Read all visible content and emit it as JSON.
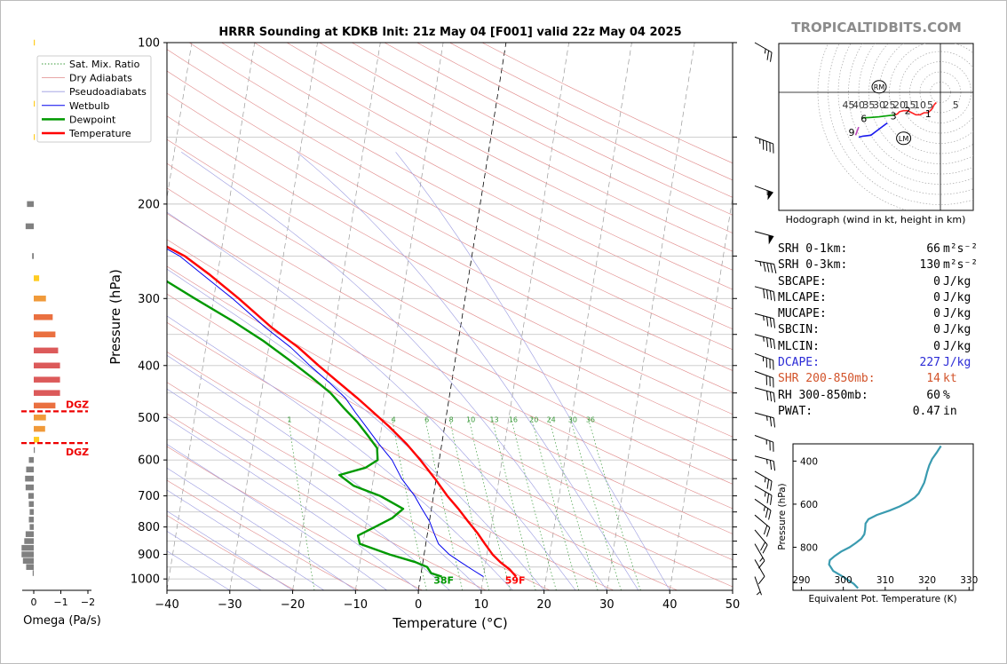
{
  "title": "HRRR Sounding at KDKB Init: 21z May 04 [F001] valid 22z May 04 2025",
  "watermark": "TROPICALTIDBITS.COM",
  "chart_data": [
    {
      "type": "line",
      "name": "skew-T",
      "xlabel": "Temperature (°C)",
      "ylabel": "Pressure (hPa)",
      "xlim": [
        -40,
        50
      ],
      "ylim": [
        1050,
        100
      ],
      "y_log": true,
      "x_ticks": [
        "−40",
        "−30",
        "−20",
        "−10",
        "0",
        "10",
        "20",
        "30",
        "40",
        "50"
      ],
      "y_ticks": [
        "100",
        "200",
        "300",
        "400",
        "500",
        "600",
        "700",
        "800",
        "900",
        "1000"
      ],
      "legend": [
        "Sat. Mix. Ratio",
        "Dry Adiabats",
        "Pseudoadiabats",
        "Wetbulb",
        "Dewpoint",
        "Temperature"
      ],
      "legend_position": "top-left",
      "mixing_ratio_labels": [
        "1",
        "4",
        "6",
        "8",
        "10",
        "13",
        "16",
        "20",
        "24",
        "30",
        "36"
      ],
      "surface_labels": {
        "dewpoint": "38F",
        "temperature": "59F"
      },
      "series": [
        {
          "name": "Temperature",
          "color": "#ff0000",
          "p": [
            990,
            960,
            930,
            900,
            860,
            820,
            780,
            740,
            700,
            650,
            600,
            560,
            520,
            490,
            460,
            430,
            400,
            370,
            340,
            300,
            270,
            250,
            230,
            220,
            210,
            200,
            180,
            165,
            150,
            130,
            115,
            100
          ],
          "t": [
            15.2,
            14.0,
            12.3,
            10.9,
            9.4,
            7.9,
            6.1,
            4.3,
            2.2,
            -0.2,
            -3.0,
            -5.6,
            -8.8,
            -11.6,
            -14.6,
            -18.0,
            -21.6,
            -25.3,
            -30.0,
            -36.0,
            -41.4,
            -45.7,
            -52.0,
            -54.5,
            -56.2,
            -57.1,
            -57.1,
            -56.5,
            -60.0,
            -65.0,
            -70.0,
            -76.0
          ]
        },
        {
          "name": "Wetbulb",
          "color": "#0000ee",
          "p": [
            990,
            960,
            930,
            900,
            860,
            820,
            780,
            740,
            700,
            650,
            600,
            560,
            520,
            490,
            460,
            430,
            400,
            370,
            340,
            300,
            270,
            250,
            230,
            220,
            210,
            200,
            180,
            165,
            150,
            130,
            115,
            100
          ],
          "t": [
            10.0,
            8.0,
            6.0,
            4.0,
            2.0,
            1.0,
            0.0,
            -1.5,
            -3.0,
            -5.5,
            -7.5,
            -10.0,
            -12.5,
            -14.5,
            -16.5,
            -19.5,
            -23.0,
            -26.5,
            -31.0,
            -37.0,
            -42.5,
            -46.5,
            -52.5,
            -55.0,
            -56.8,
            -57.6,
            -57.4,
            -56.8,
            -60.2,
            -65.2,
            -70.2,
            -76.2
          ]
        },
        {
          "name": "Dewpoint",
          "color": "#009900",
          "p": [
            990,
            975,
            950,
            930,
            900,
            860,
            830,
            800,
            770,
            740,
            700,
            670,
            640,
            620,
            600,
            570,
            540,
            510,
            480,
            450,
            420,
            390,
            360,
            330,
            300,
            270,
            250,
            230,
            200,
            180,
            160,
            150,
            130,
            115,
            100
          ],
          "t": [
            3.4,
            1.6,
            0.8,
            -1.2,
            -5.5,
            -10.5,
            -11.0,
            -8.5,
            -6.0,
            -4.5,
            -8.5,
            -13.0,
            -15.5,
            -11.5,
            -9.8,
            -10.2,
            -12.0,
            -14.0,
            -16.5,
            -19.0,
            -22.5,
            -26.5,
            -31.0,
            -36.5,
            -43.0,
            -50.0,
            -54.0,
            -57.5,
            -62.5,
            -67.0,
            -70.5,
            -71.5,
            -73.5,
            -74.5,
            -75.0
          ]
        }
      ]
    },
    {
      "type": "bar",
      "name": "omega",
      "xlabel": "Omega (Pa/s)",
      "x_ticks": [
        "0",
        "−1",
        "−2"
      ],
      "xlim": [
        0.3,
        -2.2
      ],
      "dgz_label": "DGZ",
      "dgz_levels_hpa": [
        487,
        558
      ],
      "p": [
        100,
        130,
        150,
        200,
        220,
        250,
        275,
        300,
        325,
        350,
        375,
        400,
        425,
        450,
        475,
        500,
        525,
        550,
        575,
        600,
        625,
        650,
        675,
        700,
        725,
        750,
        775,
        800,
        825,
        850,
        875,
        900,
        925,
        950,
        975
      ],
      "values": [
        -0.04,
        -0.03,
        -0.03,
        0.25,
        0.3,
        0.06,
        -0.2,
        -0.45,
        -0.7,
        -0.8,
        -0.9,
        -0.97,
        -0.97,
        -0.97,
        -0.8,
        -0.45,
        -0.42,
        -0.2,
        0.0,
        0.18,
        0.28,
        0.32,
        0.3,
        0.2,
        0.18,
        0.15,
        0.18,
        0.15,
        0.3,
        0.35,
        0.45,
        0.45,
        0.4,
        0.28,
        0.04
      ]
    },
    {
      "type": "line",
      "name": "equivalent potential temperature",
      "xlabel": "Equivalent Pot. Temperature (K)",
      "ylabel": "Pressure (hPa)",
      "xlim": [
        288,
        331
      ],
      "ylim": [
        1000,
        320
      ],
      "x_ticks": [
        "290",
        "300",
        "310",
        "320",
        "330"
      ],
      "y_ticks": [
        "400",
        "600",
        "800"
      ],
      "color": "#3a9bb0",
      "p": [
        990,
        970,
        940,
        910,
        880,
        860,
        840,
        820,
        800,
        780,
        760,
        740,
        720,
        690,
        670,
        650,
        630,
        610,
        590,
        570,
        550,
        520,
        500,
        480,
        450,
        420,
        390,
        360,
        330
      ],
      "theta_e": [
        303.5,
        302.5,
        300.2,
        297.6,
        296.6,
        296.8,
        298.0,
        299.5,
        301.5,
        303.0,
        304.3,
        305.0,
        305.2,
        305.3,
        306.0,
        308.0,
        311.0,
        313.5,
        315.5,
        317.0,
        318.0,
        318.8,
        319.3,
        319.6,
        320.0,
        320.5,
        321.2,
        322.3,
        323.3
      ]
    },
    {
      "type": "line",
      "name": "hodograph",
      "caption": "Hodograph (wind in kt, height in km)",
      "ring_labels": [
        "45",
        "40",
        "35",
        "30",
        "25",
        "20",
        "15",
        "10",
        "5",
        "5"
      ],
      "height_labels": [
        "1",
        "2",
        "3",
        "6",
        "9"
      ],
      "motion_labels": {
        "right_mover": "RM",
        "left_mover": "LM"
      },
      "segments": [
        {
          "color": "#ff2020",
          "u": [
            -2,
            -3,
            -4,
            -6,
            -8,
            -10,
            -12,
            -14,
            -16,
            -18
          ],
          "v": [
            -5,
            -6,
            -8,
            -10,
            -10,
            -11,
            -11,
            -10,
            -9,
            -9
          ]
        },
        {
          "color": "#ff2020",
          "u": [
            -18,
            -20,
            -21,
            -22
          ],
          "v": [
            -9,
            -9.5,
            -10.5,
            -11
          ]
        },
        {
          "color": "#00a000",
          "u": [
            -22,
            -26,
            -30,
            -34,
            -38
          ],
          "v": [
            -11,
            -11.5,
            -12,
            -12.3,
            -12.5
          ]
        },
        {
          "color": "#1a1aee",
          "u": [
            -26,
            -30,
            -34,
            -38,
            -40
          ],
          "v": [
            -15,
            -18,
            -21,
            -21.5,
            -22
          ]
        },
        {
          "color": "#bb44bb",
          "u": [
            -40,
            -41.5
          ],
          "v": [
            -17,
            -21
          ]
        }
      ],
      "rm": {
        "u": -30,
        "v": 2.7
      },
      "lm": {
        "u": -18,
        "v": -22.5
      }
    }
  ],
  "stats": [
    {
      "label": "SRH 0-1km:",
      "value": "66",
      "unit": "m²s⁻²",
      "style": ""
    },
    {
      "label": "SRH 0-3km:",
      "value": "130",
      "unit": "m²s⁻²",
      "style": ""
    },
    {
      "label": "SBCAPE:",
      "value": "0",
      "unit": "J/kg",
      "style": ""
    },
    {
      "label": "MLCAPE:",
      "value": "0",
      "unit": "J/kg",
      "style": ""
    },
    {
      "label": "MUCAPE:",
      "value": "0",
      "unit": "J/kg",
      "style": ""
    },
    {
      "label": "SBCIN:",
      "value": "0",
      "unit": "J/kg",
      "style": ""
    },
    {
      "label": "MLCIN:",
      "value": "0",
      "unit": "J/kg",
      "style": ""
    },
    {
      "label": "DCAPE:",
      "value": "227",
      "unit": "J/kg",
      "style": "blue"
    },
    {
      "label": "SHR 200-850mb:",
      "value": "14",
      "unit": "kt",
      "style": "orange"
    },
    {
      "label": "RH 300-850mb:",
      "value": "60",
      "unit": "%",
      "style": ""
    },
    {
      "label": "PWAT:",
      "value": "0.47",
      "unit": "in",
      "style": ""
    }
  ],
  "wind_barbs": [
    {
      "p": 100,
      "kt": 25,
      "dir": 300
    },
    {
      "p": 150,
      "kt": 45,
      "dir": 290
    },
    {
      "p": 185,
      "kt": 55,
      "dir": 290
    },
    {
      "p": 225,
      "kt": 50,
      "dir": 285
    },
    {
      "p": 255,
      "kt": 45,
      "dir": 280
    },
    {
      "p": 285,
      "kt": 40,
      "dir": 285
    },
    {
      "p": 320,
      "kt": 35,
      "dir": 285
    },
    {
      "p": 350,
      "kt": 35,
      "dir": 285
    },
    {
      "p": 380,
      "kt": 35,
      "dir": 290
    },
    {
      "p": 410,
      "kt": 30,
      "dir": 290
    },
    {
      "p": 440,
      "kt": 30,
      "dir": 285
    },
    {
      "p": 490,
      "kt": 25,
      "dir": 285
    },
    {
      "p": 540,
      "kt": 25,
      "dir": 290
    },
    {
      "p": 590,
      "kt": 25,
      "dir": 285
    },
    {
      "p": 630,
      "kt": 25,
      "dir": 300
    },
    {
      "p": 670,
      "kt": 25,
      "dir": 300
    },
    {
      "p": 710,
      "kt": 25,
      "dir": 305
    },
    {
      "p": 760,
      "kt": 20,
      "dir": 310
    },
    {
      "p": 810,
      "kt": 20,
      "dir": 320
    },
    {
      "p": 860,
      "kt": 15,
      "dir": 330
    },
    {
      "p": 920,
      "kt": 10,
      "dir": 330
    },
    {
      "p": 990,
      "kt": 5,
      "dir": 340
    }
  ]
}
